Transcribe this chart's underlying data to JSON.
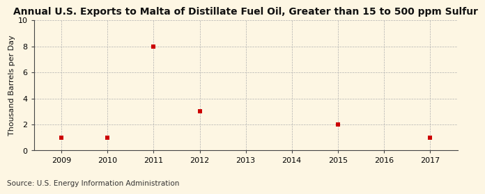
{
  "title": "Annual U.S. Exports to Malta of Distillate Fuel Oil, Greater than 15 to 500 ppm Sulfur",
  "ylabel": "Thousand Barrels per Day",
  "source": "Source: U.S. Energy Information Administration",
  "background_color": "#fdf6e3",
  "plot_bg_color": "#fdf6e3",
  "data_x": [
    2009,
    2010,
    2011,
    2012,
    2015,
    2017
  ],
  "data_y": [
    1,
    1,
    8,
    3,
    2,
    1
  ],
  "marker_color": "#cc0000",
  "marker_size": 4,
  "marker_style": "s",
  "xlim": [
    2008.4,
    2017.6
  ],
  "ylim": [
    0,
    10
  ],
  "yticks": [
    0,
    2,
    4,
    6,
    8,
    10
  ],
  "xticks": [
    2009,
    2010,
    2011,
    2012,
    2013,
    2014,
    2015,
    2016,
    2017
  ],
  "title_fontsize": 10,
  "ylabel_fontsize": 8,
  "tick_fontsize": 8,
  "source_fontsize": 7.5
}
